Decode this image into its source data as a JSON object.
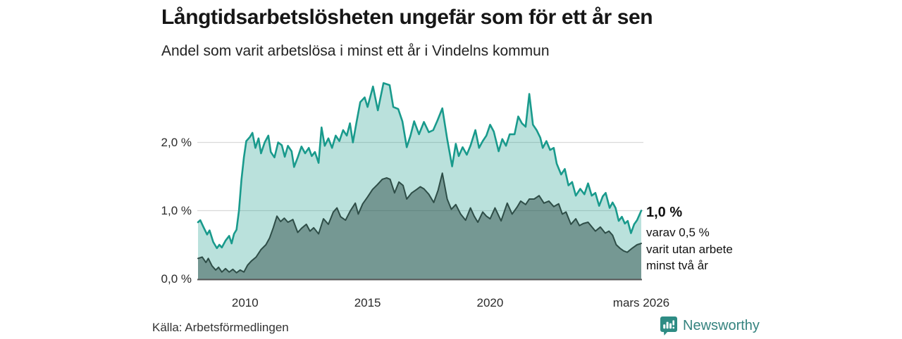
{
  "header": {
    "title": "Långtidsarbetslösheten ungefär som för ett år sen",
    "subtitle": "Andel som varit arbetslösa i minst ett år i Vindelns kommun"
  },
  "annotation": {
    "value_label": "1,0 %",
    "lines": [
      "varav 0,5 %",
      "varit utan arbete",
      "minst två år"
    ]
  },
  "footer": {
    "source": "Källa: Arbetsförmedlingen",
    "brand": "Newsworthy"
  },
  "colors": {
    "accent_teal": "#199a8c",
    "dark_green": "#2e4d47",
    "light_fill": "rgba(26,154,138,0.30)",
    "dark_fill": "rgba(47,79,74,0.50)",
    "gridline": "#d9d9d9",
    "axis_line": "#555555",
    "brand_teal": "#2e8c84"
  },
  "chart_data": {
    "type": "area",
    "title": "Långtidsarbetslösheten ungefär som för ett år sen",
    "subtitle": "Andel som varit arbetslösa i minst ett år i Vindelns kommun",
    "unit": "%",
    "grid": true,
    "legend_position": "none",
    "x_axis": {
      "domain": [
        2008.05,
        2026.2
      ],
      "ticks": [
        {
          "label": "2010",
          "x": 2010
        },
        {
          "label": "2015",
          "x": 2015
        },
        {
          "label": "2020",
          "x": 2020
        },
        {
          "label": "mars 2026",
          "x": 2026.17
        }
      ]
    },
    "y_axis": {
      "domain": [
        0,
        3.0
      ],
      "ticks": [
        {
          "label": "0,0 %",
          "value": 0
        },
        {
          "label": "1,0 %",
          "value": 1
        },
        {
          "label": "2,0 %",
          "value": 2
        }
      ]
    },
    "series": [
      {
        "name": "Andel arbetslösa minst ett år",
        "end_label": "1,0 %",
        "points": [
          [
            2008.08,
            0.83
          ],
          [
            2008.17,
            0.86
          ],
          [
            2008.3,
            0.76
          ],
          [
            2008.45,
            0.65
          ],
          [
            2008.55,
            0.71
          ],
          [
            2008.7,
            0.54
          ],
          [
            2008.85,
            0.45
          ],
          [
            2008.95,
            0.5
          ],
          [
            2009.05,
            0.46
          ],
          [
            2009.2,
            0.56
          ],
          [
            2009.35,
            0.63
          ],
          [
            2009.45,
            0.52
          ],
          [
            2009.55,
            0.66
          ],
          [
            2009.65,
            0.72
          ],
          [
            2009.75,
            1.0
          ],
          [
            2009.85,
            1.45
          ],
          [
            2009.95,
            1.78
          ],
          [
            2010.05,
            2.02
          ],
          [
            2010.2,
            2.08
          ],
          [
            2010.3,
            2.14
          ],
          [
            2010.42,
            1.92
          ],
          [
            2010.55,
            2.06
          ],
          [
            2010.65,
            1.84
          ],
          [
            2010.8,
            2.0
          ],
          [
            2010.95,
            2.1
          ],
          [
            2011.05,
            1.86
          ],
          [
            2011.2,
            1.78
          ],
          [
            2011.35,
            2.0
          ],
          [
            2011.5,
            1.96
          ],
          [
            2011.62,
            1.79
          ],
          [
            2011.75,
            1.95
          ],
          [
            2011.9,
            1.87
          ],
          [
            2012.0,
            1.64
          ],
          [
            2012.15,
            1.78
          ],
          [
            2012.3,
            1.94
          ],
          [
            2012.45,
            1.84
          ],
          [
            2012.6,
            1.92
          ],
          [
            2012.72,
            1.8
          ],
          [
            2012.85,
            1.86
          ],
          [
            2013.0,
            1.7
          ],
          [
            2013.12,
            2.22
          ],
          [
            2013.25,
            1.95
          ],
          [
            2013.4,
            2.06
          ],
          [
            2013.55,
            1.92
          ],
          [
            2013.7,
            2.1
          ],
          [
            2013.85,
            2.02
          ],
          [
            2014.0,
            2.18
          ],
          [
            2014.15,
            2.1
          ],
          [
            2014.28,
            2.28
          ],
          [
            2014.4,
            2.0
          ],
          [
            2014.55,
            2.3
          ],
          [
            2014.7,
            2.59
          ],
          [
            2014.88,
            2.66
          ],
          [
            2015.0,
            2.52
          ],
          [
            2015.22,
            2.82
          ],
          [
            2015.42,
            2.47
          ],
          [
            2015.65,
            2.87
          ],
          [
            2015.9,
            2.84
          ],
          [
            2016.05,
            2.52
          ],
          [
            2016.25,
            2.49
          ],
          [
            2016.42,
            2.31
          ],
          [
            2016.6,
            1.93
          ],
          [
            2016.75,
            2.1
          ],
          [
            2016.9,
            2.31
          ],
          [
            2017.1,
            2.12
          ],
          [
            2017.3,
            2.3
          ],
          [
            2017.5,
            2.15
          ],
          [
            2017.68,
            2.18
          ],
          [
            2017.85,
            2.32
          ],
          [
            2018.05,
            2.5
          ],
          [
            2018.25,
            2.05
          ],
          [
            2018.45,
            1.65
          ],
          [
            2018.6,
            1.98
          ],
          [
            2018.72,
            1.8
          ],
          [
            2018.88,
            1.93
          ],
          [
            2019.05,
            1.82
          ],
          [
            2019.2,
            1.95
          ],
          [
            2019.4,
            2.18
          ],
          [
            2019.55,
            1.92
          ],
          [
            2019.7,
            2.02
          ],
          [
            2019.85,
            2.1
          ],
          [
            2020.0,
            2.26
          ],
          [
            2020.15,
            2.16
          ],
          [
            2020.35,
            1.87
          ],
          [
            2020.5,
            2.05
          ],
          [
            2020.65,
            1.95
          ],
          [
            2020.8,
            2.12
          ],
          [
            2021.0,
            2.12
          ],
          [
            2021.15,
            2.38
          ],
          [
            2021.3,
            2.28
          ],
          [
            2021.45,
            2.23
          ],
          [
            2021.6,
            2.71
          ],
          [
            2021.75,
            2.26
          ],
          [
            2021.9,
            2.18
          ],
          [
            2022.05,
            2.07
          ],
          [
            2022.15,
            1.92
          ],
          [
            2022.3,
            2.02
          ],
          [
            2022.45,
            1.89
          ],
          [
            2022.6,
            1.92
          ],
          [
            2022.72,
            1.69
          ],
          [
            2022.9,
            1.53
          ],
          [
            2023.05,
            1.61
          ],
          [
            2023.2,
            1.37
          ],
          [
            2023.35,
            1.42
          ],
          [
            2023.5,
            1.22
          ],
          [
            2023.68,
            1.32
          ],
          [
            2023.85,
            1.24
          ],
          [
            2024.0,
            1.4
          ],
          [
            2024.15,
            1.22
          ],
          [
            2024.3,
            1.26
          ],
          [
            2024.45,
            1.07
          ],
          [
            2024.6,
            1.21
          ],
          [
            2024.72,
            1.26
          ],
          [
            2024.88,
            1.04
          ],
          [
            2025.0,
            1.12
          ],
          [
            2025.12,
            1.04
          ],
          [
            2025.25,
            0.85
          ],
          [
            2025.38,
            0.91
          ],
          [
            2025.5,
            0.81
          ],
          [
            2025.62,
            0.85
          ],
          [
            2025.75,
            0.67
          ],
          [
            2025.88,
            0.8
          ],
          [
            2026.0,
            0.86
          ],
          [
            2026.17,
            1.0
          ]
        ]
      },
      {
        "name": "varav utan arbete minst två år",
        "end_label": "0,5 %",
        "points": [
          [
            2008.08,
            0.3
          ],
          [
            2008.25,
            0.32
          ],
          [
            2008.4,
            0.24
          ],
          [
            2008.5,
            0.3
          ],
          [
            2008.65,
            0.19
          ],
          [
            2008.8,
            0.13
          ],
          [
            2008.92,
            0.17
          ],
          [
            2009.05,
            0.1
          ],
          [
            2009.2,
            0.15
          ],
          [
            2009.35,
            0.1
          ],
          [
            2009.5,
            0.14
          ],
          [
            2009.65,
            0.09
          ],
          [
            2009.8,
            0.13
          ],
          [
            2009.95,
            0.1
          ],
          [
            2010.1,
            0.2
          ],
          [
            2010.25,
            0.26
          ],
          [
            2010.45,
            0.32
          ],
          [
            2010.65,
            0.43
          ],
          [
            2010.85,
            0.5
          ],
          [
            2011.0,
            0.6
          ],
          [
            2011.15,
            0.75
          ],
          [
            2011.3,
            0.92
          ],
          [
            2011.45,
            0.84
          ],
          [
            2011.6,
            0.89
          ],
          [
            2011.75,
            0.83
          ],
          [
            2011.95,
            0.87
          ],
          [
            2012.15,
            0.68
          ],
          [
            2012.3,
            0.74
          ],
          [
            2012.5,
            0.8
          ],
          [
            2012.65,
            0.7
          ],
          [
            2012.8,
            0.75
          ],
          [
            2013.0,
            0.66
          ],
          [
            2013.2,
            0.88
          ],
          [
            2013.4,
            0.8
          ],
          [
            2013.6,
            0.98
          ],
          [
            2013.75,
            1.04
          ],
          [
            2013.9,
            0.91
          ],
          [
            2014.1,
            0.86
          ],
          [
            2014.3,
            1.0
          ],
          [
            2014.5,
            1.11
          ],
          [
            2014.62,
            0.95
          ],
          [
            2014.8,
            1.1
          ],
          [
            2015.0,
            1.2
          ],
          [
            2015.2,
            1.31
          ],
          [
            2015.4,
            1.38
          ],
          [
            2015.6,
            1.46
          ],
          [
            2015.78,
            1.48
          ],
          [
            2015.92,
            1.46
          ],
          [
            2016.1,
            1.26
          ],
          [
            2016.28,
            1.42
          ],
          [
            2016.45,
            1.37
          ],
          [
            2016.6,
            1.17
          ],
          [
            2016.8,
            1.26
          ],
          [
            2017.0,
            1.31
          ],
          [
            2017.15,
            1.35
          ],
          [
            2017.3,
            1.32
          ],
          [
            2017.5,
            1.24
          ],
          [
            2017.7,
            1.12
          ],
          [
            2017.88,
            1.3
          ],
          [
            2018.05,
            1.55
          ],
          [
            2018.25,
            1.17
          ],
          [
            2018.42,
            1.02
          ],
          [
            2018.6,
            1.09
          ],
          [
            2018.8,
            0.95
          ],
          [
            2019.0,
            0.86
          ],
          [
            2019.2,
            1.04
          ],
          [
            2019.35,
            0.92
          ],
          [
            2019.5,
            0.83
          ],
          [
            2019.7,
            0.98
          ],
          [
            2019.85,
            0.92
          ],
          [
            2020.0,
            0.88
          ],
          [
            2020.2,
            1.04
          ],
          [
            2020.45,
            0.85
          ],
          [
            2020.7,
            1.11
          ],
          [
            2020.9,
            0.95
          ],
          [
            2021.1,
            1.05
          ],
          [
            2021.25,
            1.14
          ],
          [
            2021.45,
            1.09
          ],
          [
            2021.6,
            1.17
          ],
          [
            2021.8,
            1.17
          ],
          [
            2022.0,
            1.22
          ],
          [
            2022.2,
            1.11
          ],
          [
            2022.4,
            1.14
          ],
          [
            2022.6,
            1.06
          ],
          [
            2022.8,
            1.1
          ],
          [
            2022.95,
            0.95
          ],
          [
            2023.1,
            0.98
          ],
          [
            2023.3,
            0.8
          ],
          [
            2023.5,
            0.88
          ],
          [
            2023.65,
            0.78
          ],
          [
            2023.8,
            0.81
          ],
          [
            2024.0,
            0.83
          ],
          [
            2024.3,
            0.7
          ],
          [
            2024.5,
            0.76
          ],
          [
            2024.7,
            0.67
          ],
          [
            2024.85,
            0.7
          ],
          [
            2025.0,
            0.64
          ],
          [
            2025.15,
            0.5
          ],
          [
            2025.3,
            0.45
          ],
          [
            2025.45,
            0.41
          ],
          [
            2025.6,
            0.39
          ],
          [
            2025.8,
            0.45
          ],
          [
            2026.0,
            0.5
          ],
          [
            2026.17,
            0.52
          ]
        ]
      }
    ]
  }
}
